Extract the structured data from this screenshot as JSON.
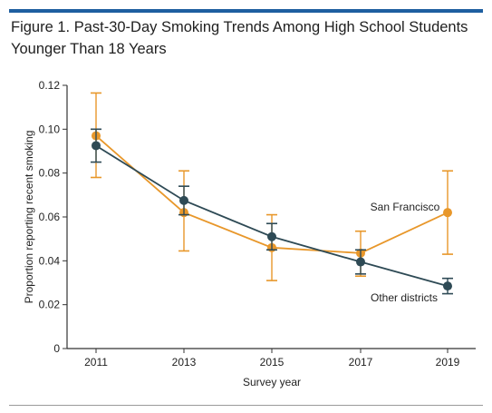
{
  "figure": {
    "title": "Figure 1. Past-30-Day Smoking Trends Among High School Students Younger Than 18 Years",
    "accent_color": "#1e5fa0"
  },
  "chart_data": {
    "type": "line",
    "xlabel": "Survey year",
    "ylabel": "Proportion reporting recent smoking",
    "x": [
      2011,
      2013,
      2015,
      2017,
      2019
    ],
    "x_tick_labels": [
      "2011",
      "2013",
      "2015",
      "2017",
      "2019"
    ],
    "ylim": [
      0,
      0.12
    ],
    "y_ticks": [
      0,
      0.02,
      0.04,
      0.06,
      0.08,
      0.1,
      0.12
    ],
    "y_tick_labels": [
      "0",
      "0.02",
      "0.04",
      "0.06",
      "0.08",
      "0.10",
      "0.12"
    ],
    "grid": false,
    "legend": "direct labels",
    "series": [
      {
        "name": "San Francisco",
        "color": "#e8972a",
        "values": [
          0.097,
          0.062,
          0.046,
          0.0435,
          0.062
        ],
        "lower": [
          0.078,
          0.0445,
          0.031,
          0.033,
          0.043
        ],
        "upper": [
          0.1165,
          0.081,
          0.061,
          0.0535,
          0.081
        ]
      },
      {
        "name": "Other districts",
        "color": "#2e4a55",
        "values": [
          0.0925,
          0.0675,
          0.051,
          0.0395,
          0.0285
        ],
        "lower": [
          0.085,
          0.061,
          0.045,
          0.034,
          0.025
        ],
        "upper": [
          0.1,
          0.074,
          0.057,
          0.045,
          0.032
        ]
      }
    ]
  }
}
